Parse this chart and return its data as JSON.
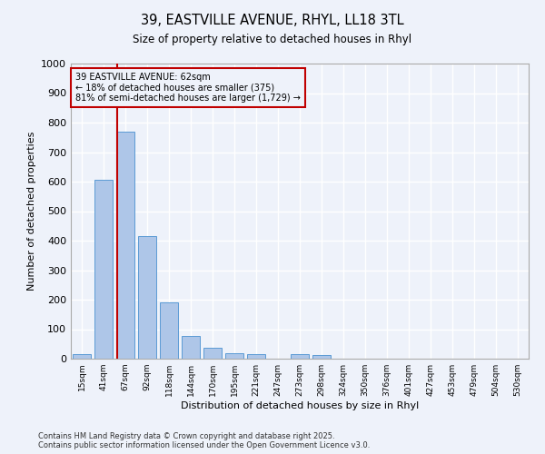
{
  "title_line1": "39, EASTVILLE AVENUE, RHYL, LL18 3TL",
  "title_line2": "Size of property relative to detached houses in Rhyl",
  "xlabel": "Distribution of detached houses by size in Rhyl",
  "ylabel": "Number of detached properties",
  "categories": [
    "15sqm",
    "41sqm",
    "67sqm",
    "92sqm",
    "118sqm",
    "144sqm",
    "170sqm",
    "195sqm",
    "221sqm",
    "247sqm",
    "273sqm",
    "298sqm",
    "324sqm",
    "350sqm",
    "376sqm",
    "401sqm",
    "427sqm",
    "453sqm",
    "479sqm",
    "504sqm",
    "530sqm"
  ],
  "values": [
    15,
    605,
    770,
    415,
    192,
    78,
    38,
    18,
    15,
    0,
    14,
    13,
    0,
    0,
    0,
    0,
    0,
    0,
    0,
    0,
    0
  ],
  "bar_color": "#aec6e8",
  "bar_edge_color": "#5b9bd5",
  "annotation_text": "39 EASTVILLE AVENUE: 62sqm\n← 18% of detached houses are smaller (375)\n81% of semi-detached houses are larger (1,729) →",
  "vline_color": "#c00000",
  "annotation_box_color": "#c00000",
  "ylim": [
    0,
    1000
  ],
  "yticks": [
    0,
    100,
    200,
    300,
    400,
    500,
    600,
    700,
    800,
    900,
    1000
  ],
  "background_color": "#eef2fa",
  "grid_color": "#ffffff",
  "footnote": "Contains HM Land Registry data © Crown copyright and database right 2025.\nContains public sector information licensed under the Open Government Licence v3.0."
}
